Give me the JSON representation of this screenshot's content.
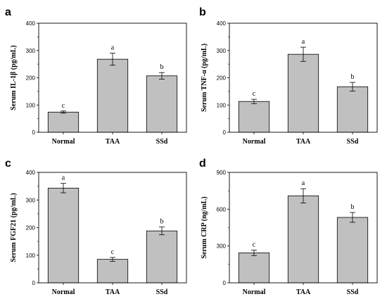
{
  "colors": {
    "bar_fill": "#c0c0c0",
    "bar_stroke": "#000000",
    "axis": "#000000"
  },
  "chart_data": [
    {
      "panel": "a",
      "type": "bar",
      "ylabel": "Serum IL-1β (pg/mL)",
      "categories": [
        "Normal",
        "TAA",
        "SSd"
      ],
      "values": [
        74,
        268,
        207
      ],
      "errors": [
        4,
        22,
        12
      ],
      "annotations": [
        "c",
        "a",
        "b"
      ],
      "ylim": [
        0,
        400
      ],
      "yticks": [
        "0",
        "100",
        "200",
        "300",
        "400"
      ],
      "grid": false
    },
    {
      "panel": "b",
      "type": "bar",
      "ylabel": "Serum TNF-α (pg/mL)",
      "categories": [
        "Normal",
        "TAA",
        "SSd"
      ],
      "values": [
        113,
        286,
        167
      ],
      "errors": [
        8,
        26,
        16
      ],
      "annotations": [
        "c",
        "a",
        "b"
      ],
      "ylim": [
        0,
        400
      ],
      "yticks": [
        "0",
        "100",
        "200",
        "300",
        "400"
      ],
      "grid": false
    },
    {
      "panel": "c",
      "type": "bar",
      "ylabel": "Serum FGF21 (pg/mL)",
      "categories": [
        "Normal",
        "TAA",
        "SSd"
      ],
      "values": [
        343,
        85,
        188
      ],
      "errors": [
        17,
        7,
        14
      ],
      "annotations": [
        "a",
        "c",
        "b"
      ],
      "ylim": [
        0,
        400
      ],
      "yticks": [
        "0",
        "100",
        "200",
        "300",
        "400"
      ],
      "grid": false
    },
    {
      "panel": "d",
      "type": "bar",
      "ylabel": "Serum CRP (ng/mL)",
      "categories": [
        "Normal",
        "TAA",
        "SSd"
      ],
      "values": [
        244,
        709,
        533
      ],
      "errors": [
        22,
        58,
        40
      ],
      "annotations": [
        "c",
        "a",
        "b"
      ],
      "ylim": [
        0,
        900
      ],
      "yticks": [
        "0",
        "300",
        "600",
        "900"
      ],
      "grid": false
    }
  ]
}
